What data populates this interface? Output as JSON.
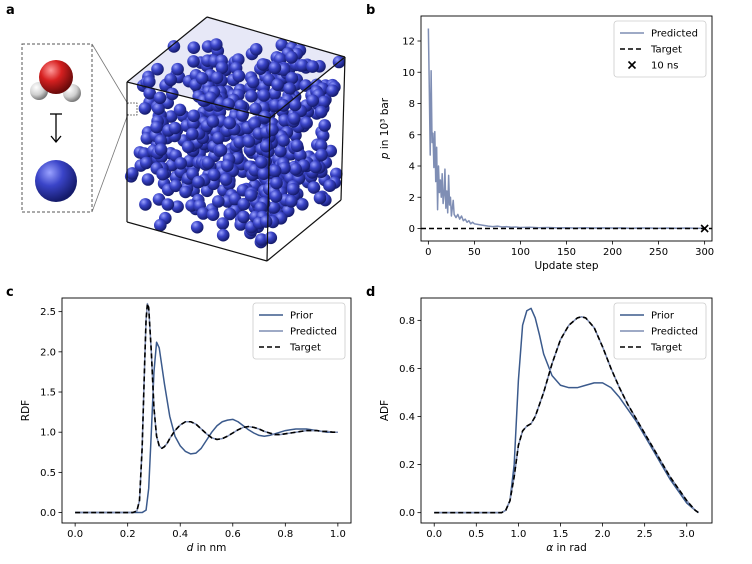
{
  "panels": {
    "a": "a",
    "b": "b",
    "c": "c",
    "d": "d"
  },
  "colors": {
    "prior": "#3b5a8c",
    "predicted": "#7f8eb4",
    "target": "#000000",
    "sphere": "#3a44c8",
    "oxygen": "#d62020",
    "hydrogen": "#d9d9d9"
  },
  "icons": [
    "water-molecule-icon",
    "coarse-grained-bead-icon",
    "maps-to-arrow-icon",
    "particle-box-icon"
  ],
  "chart_data": [
    {
      "type": "line",
      "panel": "b",
      "xlabel": "Update step",
      "ylabel_html": "p in 10³ bar",
      "xlim": [
        -8,
        308
      ],
      "ylim": [
        -0.8,
        13.6
      ],
      "xticks": [
        0,
        50,
        100,
        150,
        200,
        250,
        300
      ],
      "yticks": [
        0,
        2,
        4,
        6,
        8,
        10,
        12
      ],
      "grid": false,
      "legend": {
        "position": "top-right",
        "entries": [
          "Predicted",
          "Target",
          "10 ns"
        ]
      },
      "series": [
        {
          "name": "Predicted",
          "x": [
            0,
            1,
            2,
            3,
            4,
            5,
            6,
            7,
            8,
            9,
            10,
            11,
            12,
            13,
            14,
            15,
            16,
            17,
            18,
            19,
            20,
            21,
            22,
            23,
            24,
            25,
            26,
            27,
            28,
            30,
            32,
            34,
            36,
            38,
            40,
            42,
            44,
            46,
            48,
            50,
            55,
            60,
            65,
            70,
            75,
            80,
            85,
            90,
            95,
            100,
            110,
            120,
            130,
            140,
            150,
            160,
            170,
            180,
            190,
            200,
            210,
            220,
            230,
            240,
            250,
            260,
            270,
            280,
            290,
            300
          ],
          "y": [
            12.8,
            9.0,
            4.7,
            10.1,
            5.5,
            6.1,
            3.9,
            6.2,
            3.0,
            5.2,
            1.2,
            4.0,
            2.3,
            3.1,
            2.0,
            3.5,
            1.6,
            2.1,
            3.8,
            1.3,
            2.4,
            1.0,
            3.4,
            1.5,
            2.0,
            0.8,
            1.3,
            1.8,
            0.9,
            0.7,
            0.9,
            0.6,
            0.8,
            0.5,
            0.6,
            0.4,
            0.5,
            0.3,
            0.4,
            0.3,
            0.25,
            0.2,
            0.15,
            0.12,
            0.15,
            0.1,
            0.12,
            0.08,
            0.1,
            0.06,
            0.08,
            0.05,
            0.06,
            0.04,
            0.05,
            0.03,
            0.05,
            0.03,
            0.04,
            0.03,
            0.04,
            0.02,
            0.03,
            0.03,
            0.02,
            0.03,
            0.02,
            0.03,
            0.02,
            0.02
          ]
        },
        {
          "name": "Target",
          "x": [
            -8,
            308
          ],
          "y": [
            0,
            0
          ],
          "style": "dashed"
        },
        {
          "name": "10 ns",
          "x": [
            300
          ],
          "y": [
            0
          ],
          "style": "marker-x"
        }
      ]
    },
    {
      "type": "line",
      "panel": "c",
      "xlabel_html": "d in nm",
      "ylabel": "RDF",
      "xlim": [
        -0.05,
        1.05
      ],
      "ylim": [
        -0.13,
        2.67
      ],
      "xticks": [
        0.0,
        0.2,
        0.4,
        0.6,
        0.8,
        1.0
      ],
      "yticks": [
        0.0,
        0.5,
        1.0,
        1.5,
        2.0,
        2.5
      ],
      "grid": false,
      "legend": {
        "position": "top-right",
        "entries": [
          "Prior",
          "Predicted",
          "Target"
        ]
      },
      "series": [
        {
          "name": "Prior",
          "x": [
            0.0,
            0.22,
            0.24,
            0.255,
            0.27,
            0.28,
            0.29,
            0.3,
            0.31,
            0.32,
            0.34,
            0.36,
            0.38,
            0.4,
            0.42,
            0.44,
            0.46,
            0.48,
            0.5,
            0.52,
            0.54,
            0.56,
            0.58,
            0.6,
            0.62,
            0.64,
            0.66,
            0.68,
            0.7,
            0.72,
            0.74,
            0.76,
            0.78,
            0.8,
            0.82,
            0.84,
            0.86,
            0.88,
            0.9,
            0.92,
            0.94,
            0.96,
            0.98,
            1.0
          ],
          "y": [
            0.0,
            0.0,
            0.0,
            0.0,
            0.03,
            0.3,
            1.0,
            1.75,
            2.12,
            2.05,
            1.6,
            1.2,
            0.95,
            0.83,
            0.76,
            0.73,
            0.74,
            0.8,
            0.9,
            1.0,
            1.08,
            1.13,
            1.15,
            1.16,
            1.13,
            1.08,
            1.03,
            0.99,
            0.96,
            0.95,
            0.96,
            0.98,
            1.0,
            1.02,
            1.03,
            1.04,
            1.04,
            1.04,
            1.03,
            1.02,
            1.01,
            1.0,
            1.0,
            1.0
          ]
        },
        {
          "name": "Predicted",
          "x": [
            0.0,
            0.22,
            0.235,
            0.245,
            0.255,
            0.265,
            0.27,
            0.275,
            0.28,
            0.29,
            0.3,
            0.31,
            0.32,
            0.33,
            0.34,
            0.35,
            0.36,
            0.38,
            0.4,
            0.42,
            0.44,
            0.46,
            0.48,
            0.5,
            0.52,
            0.54,
            0.56,
            0.58,
            0.6,
            0.62,
            0.64,
            0.66,
            0.68,
            0.7,
            0.72,
            0.74,
            0.76,
            0.78,
            0.8,
            0.82,
            0.84,
            0.86,
            0.88,
            0.9,
            0.92,
            0.94,
            0.96,
            0.98,
            1.0
          ],
          "y": [
            0.0,
            0.0,
            0.02,
            0.15,
            0.8,
            1.9,
            2.4,
            2.6,
            2.55,
            2.0,
            1.3,
            0.95,
            0.83,
            0.8,
            0.82,
            0.86,
            0.92,
            1.02,
            1.09,
            1.13,
            1.13,
            1.1,
            1.04,
            0.98,
            0.93,
            0.91,
            0.92,
            0.95,
            0.99,
            1.03,
            1.06,
            1.07,
            1.06,
            1.04,
            1.01,
            0.99,
            0.97,
            0.97,
            0.98,
            0.99,
            1.0,
            1.01,
            1.02,
            1.02,
            1.02,
            1.01,
            1.01,
            1.0,
            1.0
          ]
        },
        {
          "name": "Target",
          "x": [
            0.0,
            0.22,
            0.235,
            0.245,
            0.255,
            0.265,
            0.27,
            0.275,
            0.28,
            0.29,
            0.3,
            0.31,
            0.32,
            0.33,
            0.34,
            0.35,
            0.36,
            0.38,
            0.4,
            0.42,
            0.44,
            0.46,
            0.48,
            0.5,
            0.52,
            0.54,
            0.56,
            0.58,
            0.6,
            0.62,
            0.64,
            0.66,
            0.68,
            0.7,
            0.72,
            0.74,
            0.76,
            0.78,
            0.8,
            0.82,
            0.84,
            0.86,
            0.88,
            0.9,
            0.92,
            0.94,
            0.96,
            0.98,
            1.0
          ],
          "y": [
            0.0,
            0.0,
            0.02,
            0.15,
            0.8,
            1.9,
            2.4,
            2.6,
            2.55,
            2.0,
            1.3,
            0.95,
            0.83,
            0.8,
            0.82,
            0.86,
            0.92,
            1.02,
            1.09,
            1.13,
            1.13,
            1.1,
            1.04,
            0.98,
            0.93,
            0.91,
            0.92,
            0.95,
            0.99,
            1.03,
            1.06,
            1.07,
            1.06,
            1.04,
            1.01,
            0.99,
            0.97,
            0.97,
            0.98,
            0.99,
            1.0,
            1.01,
            1.02,
            1.02,
            1.02,
            1.01,
            1.01,
            1.0,
            1.0
          ],
          "style": "dashed"
        }
      ]
    },
    {
      "type": "line",
      "panel": "d",
      "xlabel_html": "α in rad",
      "ylabel": "ADF",
      "xlim": [
        -0.157,
        3.3
      ],
      "ylim": [
        -0.043,
        0.893
      ],
      "xticks": [
        0.0,
        0.5,
        1.0,
        1.5,
        2.0,
        2.5,
        3.0
      ],
      "yticks": [
        0.0,
        0.2,
        0.4,
        0.6,
        0.8
      ],
      "grid": false,
      "legend": {
        "position": "top-right",
        "entries": [
          "Prior",
          "Predicted",
          "Target"
        ]
      },
      "series": [
        {
          "name": "Prior",
          "x": [
            0.0,
            0.8,
            0.85,
            0.9,
            0.95,
            1.0,
            1.05,
            1.1,
            1.15,
            1.2,
            1.25,
            1.3,
            1.4,
            1.5,
            1.6,
            1.7,
            1.8,
            1.9,
            2.0,
            2.1,
            2.2,
            2.3,
            2.4,
            2.5,
            2.6,
            2.7,
            2.8,
            2.9,
            3.0,
            3.1,
            3.14
          ],
          "y": [
            0.0,
            0.0,
            0.01,
            0.05,
            0.2,
            0.55,
            0.78,
            0.84,
            0.85,
            0.81,
            0.74,
            0.66,
            0.57,
            0.53,
            0.52,
            0.52,
            0.53,
            0.54,
            0.54,
            0.52,
            0.48,
            0.43,
            0.38,
            0.32,
            0.26,
            0.2,
            0.14,
            0.09,
            0.04,
            0.01,
            0.0
          ]
        },
        {
          "name": "Predicted",
          "x": [
            0.0,
            0.8,
            0.85,
            0.9,
            0.95,
            1.0,
            1.05,
            1.1,
            1.15,
            1.2,
            1.3,
            1.4,
            1.5,
            1.6,
            1.7,
            1.75,
            1.8,
            1.9,
            2.0,
            2.1,
            2.2,
            2.3,
            2.4,
            2.5,
            2.6,
            2.7,
            2.8,
            2.9,
            3.0,
            3.1,
            3.14
          ],
          "y": [
            0.0,
            0.0,
            0.01,
            0.05,
            0.15,
            0.28,
            0.34,
            0.36,
            0.37,
            0.4,
            0.5,
            0.62,
            0.72,
            0.78,
            0.81,
            0.815,
            0.81,
            0.77,
            0.69,
            0.6,
            0.52,
            0.45,
            0.39,
            0.33,
            0.27,
            0.21,
            0.15,
            0.1,
            0.05,
            0.01,
            0.0
          ]
        },
        {
          "name": "Target",
          "x": [
            0.0,
            0.8,
            0.85,
            0.9,
            0.95,
            1.0,
            1.05,
            1.1,
            1.15,
            1.2,
            1.3,
            1.4,
            1.5,
            1.6,
            1.7,
            1.75,
            1.8,
            1.9,
            2.0,
            2.1,
            2.2,
            2.3,
            2.4,
            2.5,
            2.6,
            2.7,
            2.8,
            2.9,
            3.0,
            3.1,
            3.14
          ],
          "y": [
            0.0,
            0.0,
            0.01,
            0.05,
            0.15,
            0.28,
            0.34,
            0.36,
            0.37,
            0.4,
            0.5,
            0.62,
            0.72,
            0.78,
            0.81,
            0.815,
            0.81,
            0.77,
            0.69,
            0.6,
            0.52,
            0.45,
            0.39,
            0.33,
            0.27,
            0.21,
            0.15,
            0.1,
            0.05,
            0.01,
            0.0
          ],
          "style": "dashed"
        }
      ]
    }
  ]
}
